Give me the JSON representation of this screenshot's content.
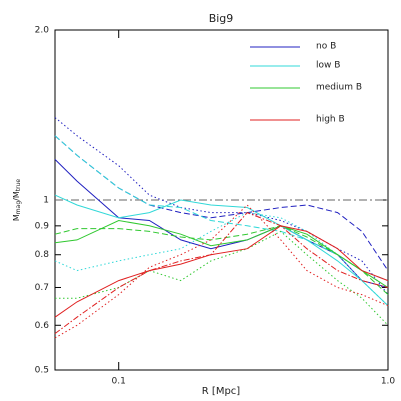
{
  "chart_data": {
    "type": "line",
    "title": "Big9",
    "xlabel": "R [Mpc]",
    "ylabel": [
      "M",
      "mag",
      "/M",
      "true"
    ],
    "log_x": true,
    "log_y": true,
    "xlim": [
      0.058,
      1.0
    ],
    "ylim": [
      0.5,
      2.0
    ],
    "xticks": [
      0.1,
      {
        "value": 1.0,
        "label": "1.0"
      }
    ],
    "yticks": [
      0.5,
      0.6,
      0.7,
      0.8,
      0.9,
      1,
      {
        "value": 2.0,
        "label": "2.0"
      }
    ],
    "hline": 1,
    "x": [
      0.058,
      0.07,
      0.1,
      0.13,
      0.17,
      0.22,
      0.3,
      0.4,
      0.5,
      0.65,
      0.8,
      1.0
    ],
    "series": [
      {
        "name": "no B",
        "color": "#2020c0",
        "lines": [
          {
            "dash": "solid",
            "values": [
              1.18,
              1.08,
              0.93,
              0.92,
              0.85,
              0.82,
              0.85,
              0.9,
              0.85,
              0.8,
              0.72,
              0.7
            ]
          },
          {
            "dash": "dashed",
            "values": [
              1.3,
              1.2,
              1.05,
              0.98,
              0.95,
              0.93,
              0.95,
              0.97,
              0.98,
              0.95,
              0.88,
              0.75
            ]
          },
          {
            "dash": "dotted",
            "values": [
              1.4,
              1.3,
              1.15,
              1.02,
              0.97,
              0.95,
              0.95,
              0.92,
              0.88,
              0.82,
              0.78,
              0.68
            ]
          }
        ]
      },
      {
        "name": "low B",
        "color": "#30d8d8",
        "lines": [
          {
            "dash": "solid",
            "values": [
              1.02,
              0.98,
              0.93,
              0.95,
              1.0,
              0.98,
              0.97,
              0.9,
              0.85,
              0.78,
              0.72,
              0.65
            ]
          },
          {
            "dash": "dashed",
            "values": [
              1.3,
              1.2,
              1.05,
              0.98,
              0.97,
              0.92,
              0.9,
              0.88,
              0.85,
              0.8,
              0.75,
              0.72
            ]
          },
          {
            "dash": "dotted",
            "values": [
              0.78,
              0.75,
              0.78,
              0.8,
              0.82,
              0.88,
              0.95,
              0.93,
              0.88,
              0.8,
              0.72,
              0.65
            ]
          }
        ]
      },
      {
        "name": "medium B",
        "color": "#30c830",
        "lines": [
          {
            "dash": "solid",
            "values": [
              0.84,
              0.85,
              0.92,
              0.9,
              0.87,
              0.83,
              0.85,
              0.9,
              0.87,
              0.8,
              0.75,
              0.7
            ]
          },
          {
            "dash": "dashed",
            "values": [
              0.87,
              0.89,
              0.89,
              0.88,
              0.86,
              0.85,
              0.87,
              0.9,
              0.86,
              0.8,
              0.75,
              0.68
            ]
          },
          {
            "dash": "dotted",
            "values": [
              0.67,
              0.67,
              0.7,
              0.75,
              0.72,
              0.78,
              0.82,
              0.88,
              0.8,
              0.72,
              0.67,
              0.6
            ]
          }
        ]
      },
      {
        "name": "high B",
        "color": "#e02020",
        "lines": [
          {
            "dash": "solid",
            "values": [
              0.62,
              0.66,
              0.72,
              0.75,
              0.77,
              0.8,
              0.82,
              0.9,
              0.88,
              0.82,
              0.75,
              0.72
            ]
          },
          {
            "dash": "dashdot",
            "values": [
              0.58,
              0.62,
              0.7,
              0.75,
              0.78,
              0.8,
              0.95,
              0.9,
              0.82,
              0.75,
              0.72,
              0.7
            ]
          },
          {
            "dash": "dotted",
            "values": [
              0.57,
              0.6,
              0.68,
              0.76,
              0.8,
              0.85,
              0.98,
              0.85,
              0.75,
              0.7,
              0.68,
              0.65
            ]
          }
        ]
      }
    ]
  }
}
